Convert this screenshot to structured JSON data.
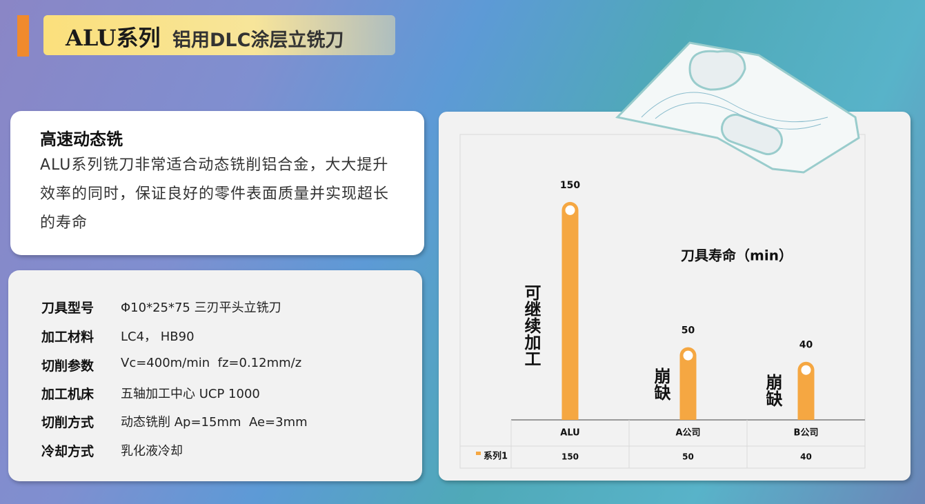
{
  "header": {
    "series": "ALU系列",
    "title": "铝用DLC涂层立铣刀"
  },
  "feature": {
    "heading": "高速动态铣",
    "body": "ALU系列铣刀非常适合动态铣削铝合金，大大提升效率的同时，保证良好的零件表面质量并实现超长的寿命"
  },
  "specs": {
    "rows": [
      [
        "刀具型号",
        "Φ10*25*75 三刃平头立铣刀"
      ],
      [
        "加工材料",
        "LC4， HB90"
      ],
      [
        "切削参数",
        "Vc=400m/min  fz=0.12mm/z"
      ],
      [
        "加工机床",
        "五轴加工中心 UCP 1000"
      ],
      [
        "切削方式",
        "动态铣削 Ap=15mm  Ae=3mm"
      ],
      [
        "冷却方式",
        "乳化液冷却"
      ]
    ]
  },
  "chart_data": {
    "type": "bar",
    "title": "刀具寿命（min）",
    "categories": [
      "ALU",
      "A公司",
      "B公司"
    ],
    "series": [
      {
        "name": "系列1",
        "color": "#f5a742",
        "values": [
          150,
          50,
          40
        ]
      }
    ],
    "ylim": [
      0,
      196
    ],
    "annotations": [
      "可继续加工",
      "崩缺",
      "崩缺"
    ]
  }
}
